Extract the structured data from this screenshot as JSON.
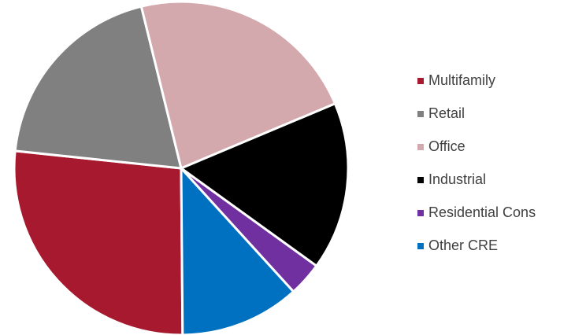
{
  "chart_data": {
    "type": "pie",
    "categories": [
      "Multifamily",
      "Retail",
      "Office",
      "Industrial",
      "Residential Cons",
      "Other CRE"
    ],
    "values": [
      26.8,
      19.5,
      22.5,
      16.3,
      3.3,
      11.6
    ],
    "colors": [
      "#a6192e",
      "#808080",
      "#d4a9ad",
      "#000000",
      "#7030a0",
      "#0070c0"
    ],
    "legend": "right"
  }
}
